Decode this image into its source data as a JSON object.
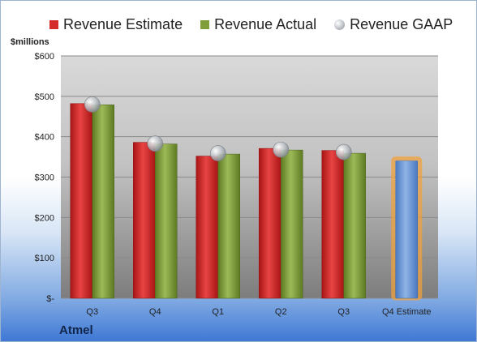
{
  "colors": {
    "estimate": "#d42b2b",
    "actual": "#7f9e3b",
    "gaap": "#b9bec4",
    "future_estimate": "#6f9bd6",
    "future_glow": "#f2a13c"
  },
  "chart_data": {
    "type": "bar",
    "ylabel": "$millions",
    "ylim": [
      0,
      600
    ],
    "yticks": [
      "$-",
      "$100",
      "$200",
      "$300",
      "$400",
      "$500",
      "$600"
    ],
    "ytick_values": [
      0,
      100,
      200,
      300,
      400,
      500,
      600
    ],
    "grid": true,
    "legend_position": "top",
    "categories": [
      "Q3",
      "Q4",
      "Q1",
      "Q2",
      "Q3",
      "Q4 Estimate"
    ],
    "series": [
      {
        "name": "Revenue Estimate",
        "kind": "bar",
        "values": [
          482,
          386,
          352,
          371,
          366,
          340
        ]
      },
      {
        "name": "Revenue Actual",
        "kind": "bar",
        "values": [
          479,
          382,
          357,
          367,
          359,
          null
        ]
      },
      {
        "name": "Revenue GAAP",
        "kind": "marker",
        "values": [
          480,
          383,
          359,
          368,
          362,
          null
        ]
      }
    ],
    "company": "Atmel"
  }
}
